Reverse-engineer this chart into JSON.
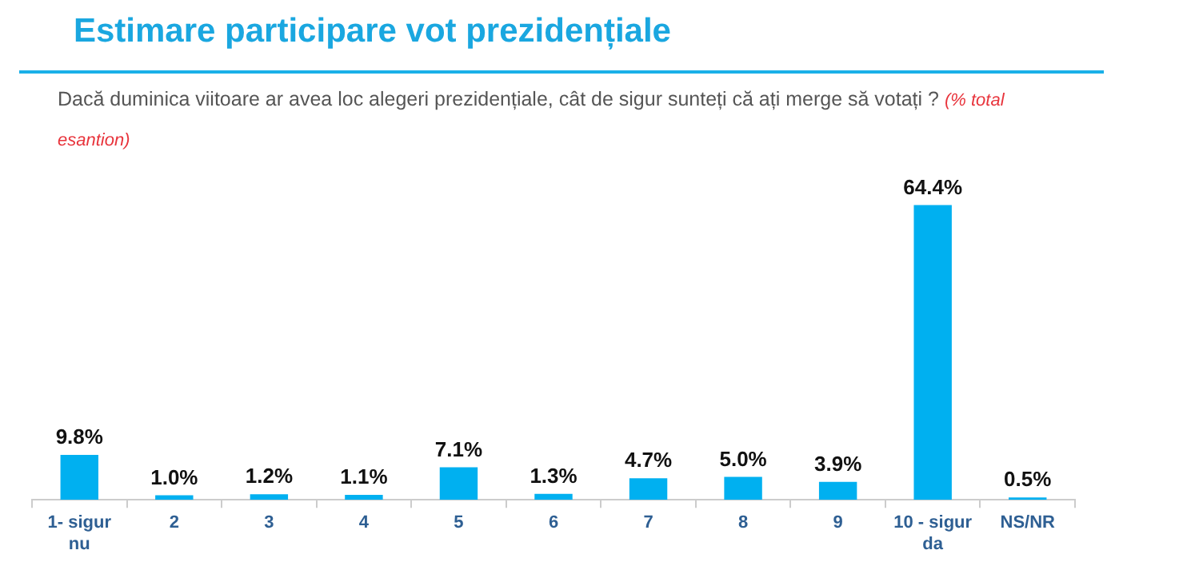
{
  "chart_data": {
    "type": "bar",
    "title": "Estimare participare vot prezidențiale",
    "subtitle": "Dacă duminica viitoare ar avea loc alegeri prezidențiale, cât de sigur sunteți că ați merge să votați ?",
    "annotations": [
      "(% total esantion)"
    ],
    "categories": [
      "1- sigur nu",
      "2",
      "3",
      "4",
      "5",
      "6",
      "7",
      "8",
      "9",
      "10 - sigur da",
      "NS/NR"
    ],
    "values": [
      9.8,
      1.0,
      1.2,
      1.1,
      7.1,
      1.3,
      4.7,
      5.0,
      3.9,
      64.4,
      0.5
    ],
    "value_labels": [
      "9.8%",
      "1.0%",
      "1.2%",
      "1.1%",
      "7.1%",
      "1.3%",
      "4.7%",
      "5.0%",
      "3.9%",
      "64.4%",
      "0.5%"
    ],
    "color": "#00b0f0",
    "grid": false,
    "legend": false
  }
}
